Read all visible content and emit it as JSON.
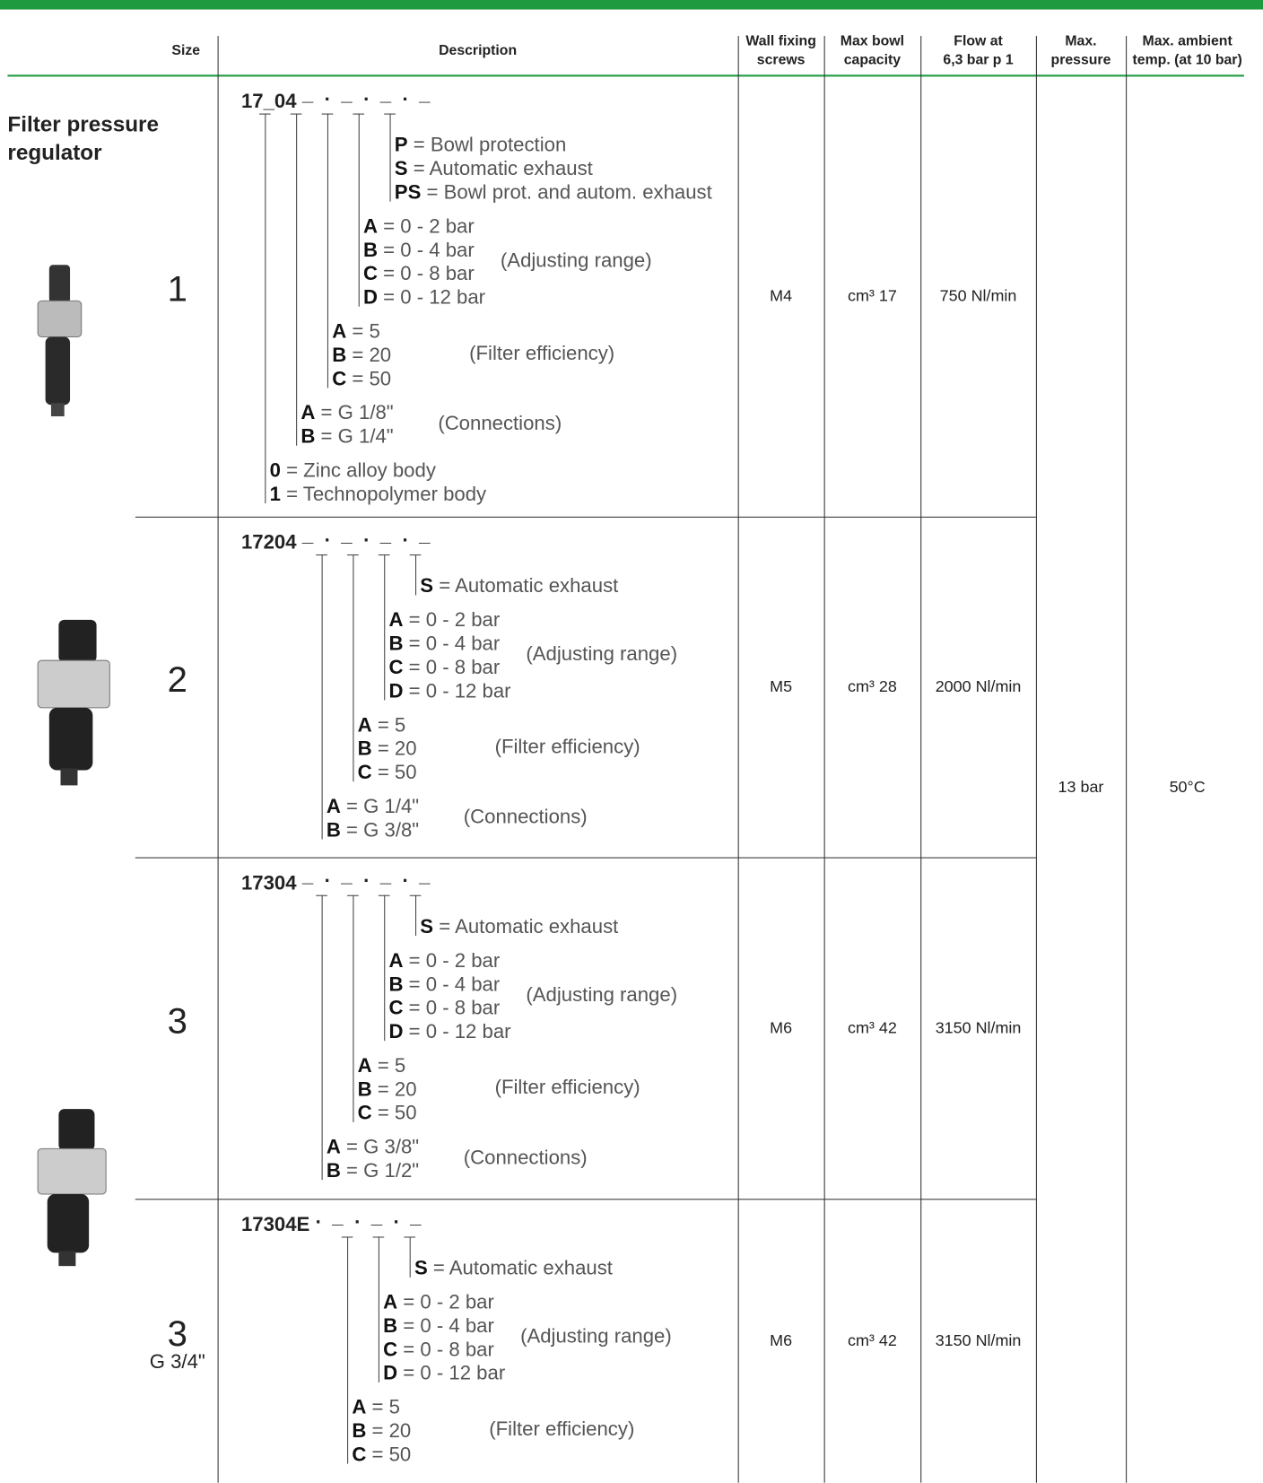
{
  "header": {
    "columns": [
      [
        "Size"
      ],
      [
        "Description"
      ],
      [
        "Wall fixing",
        "screws"
      ],
      [
        "Max bowl",
        "capacity"
      ],
      [
        "Flow at",
        "6,3 bar   p 1"
      ],
      [
        "Max.",
        "pressure"
      ],
      [
        "Max. ambient",
        "temp. (at 10 bar)"
      ]
    ]
  },
  "section_title": [
    "Filter pressure",
    "regulator"
  ],
  "max_pressure": "13 bar",
  "max_temp": "50°C",
  "rows": [
    {
      "size": "1",
      "code": "17_04",
      "slots": "_ . _ . _ . _",
      "groups": [
        {
          "options": [
            {
              "key": "P",
              "text": "= Bowl protection"
            },
            {
              "key": "S",
              "text": "= Automatic exhaust"
            },
            {
              "key": "PS",
              "text": "= Bowl prot. and autom. exhaust"
            }
          ]
        },
        {
          "options": [
            {
              "key": "A",
              "text": "= 0 - 2 bar"
            },
            {
              "key": "B",
              "text": "= 0 - 4 bar"
            },
            {
              "key": "C",
              "text": "= 0 - 8 bar"
            },
            {
              "key": "D",
              "text": "= 0 - 12 bar"
            }
          ],
          "note": "(Adjusting range)"
        },
        {
          "options": [
            {
              "key": "A",
              "text": "= 5"
            },
            {
              "key": "B",
              "text": "= 20"
            },
            {
              "key": "C",
              "text": "= 50"
            }
          ],
          "note": "(Filter efficiency)"
        },
        {
          "options": [
            {
              "key": "A",
              "text": "= G 1/8\""
            },
            {
              "key": "B",
              "text": "= G 1/4\""
            }
          ],
          "note": "(Connections)"
        },
        {
          "options": [
            {
              "key": "0",
              "text": "= Zinc alloy body"
            },
            {
              "key": "1",
              "text": "= Technopolymer body"
            }
          ]
        }
      ],
      "wall": "M4",
      "bowl": "cm³ 17",
      "flow": "750 Nl/min"
    },
    {
      "size": "2",
      "code": "17204",
      "slots": "_ . _ . _ . _",
      "groups": [
        {
          "options": [
            {
              "key": "S",
              "text": "= Automatic exhaust"
            }
          ]
        },
        {
          "options": [
            {
              "key": "A",
              "text": "= 0 - 2 bar"
            },
            {
              "key": "B",
              "text": "= 0 - 4 bar"
            },
            {
              "key": "C",
              "text": "= 0 - 8 bar"
            },
            {
              "key": "D",
              "text": "= 0 - 12 bar"
            }
          ],
          "note": "(Adjusting range)"
        },
        {
          "options": [
            {
              "key": "A",
              "text": "= 5"
            },
            {
              "key": "B",
              "text": "= 20"
            },
            {
              "key": "C",
              "text": "= 50"
            }
          ],
          "note": "(Filter efficiency)"
        },
        {
          "options": [
            {
              "key": "A",
              "text": "= G 1/4\""
            },
            {
              "key": "B",
              "text": "= G 3/8\""
            }
          ],
          "note": "(Connections)"
        }
      ],
      "wall": "M5",
      "bowl": "cm³ 28",
      "flow": "2000 Nl/min"
    },
    {
      "size": "3",
      "code": "17304",
      "slots": "_ . _ . _ . _",
      "groups": [
        {
          "options": [
            {
              "key": "S",
              "text": "= Automatic exhaust"
            }
          ]
        },
        {
          "options": [
            {
              "key": "A",
              "text": "= 0 - 2 bar"
            },
            {
              "key": "B",
              "text": "= 0 - 4 bar"
            },
            {
              "key": "C",
              "text": "= 0 - 8 bar"
            },
            {
              "key": "D",
              "text": "= 0 - 12 bar"
            }
          ],
          "note": "(Adjusting range)"
        },
        {
          "options": [
            {
              "key": "A",
              "text": "= 5"
            },
            {
              "key": "B",
              "text": "= 20"
            },
            {
              "key": "C",
              "text": "= 50"
            }
          ],
          "note": "(Filter efficiency)"
        },
        {
          "options": [
            {
              "key": "A",
              "text": "= G 3/8\""
            },
            {
              "key": "B",
              "text": "= G 1/2\""
            }
          ],
          "note": "(Connections)"
        }
      ],
      "wall": "M6",
      "bowl": "cm³ 42",
      "flow": "3150 Nl/min"
    },
    {
      "size": "3",
      "size_note": "G 3/4\"",
      "code": "17304E",
      "slots": ". _ . _ . _",
      "groups": [
        {
          "options": [
            {
              "key": "S",
              "text": "= Automatic exhaust"
            }
          ]
        },
        {
          "options": [
            {
              "key": "A",
              "text": "= 0 - 2 bar"
            },
            {
              "key": "B",
              "text": "= 0 - 4 bar"
            },
            {
              "key": "C",
              "text": "= 0 - 8 bar"
            },
            {
              "key": "D",
              "text": "= 0 - 12 bar"
            }
          ],
          "note": "(Adjusting range)"
        },
        {
          "options": [
            {
              "key": "A",
              "text": "= 5"
            },
            {
              "key": "B",
              "text": "= 20"
            },
            {
              "key": "C",
              "text": "= 50"
            }
          ],
          "note": "(Filter efficiency)"
        }
      ],
      "wall": "M6",
      "bowl": "cm³ 42",
      "flow": "3150 Nl/min"
    }
  ]
}
